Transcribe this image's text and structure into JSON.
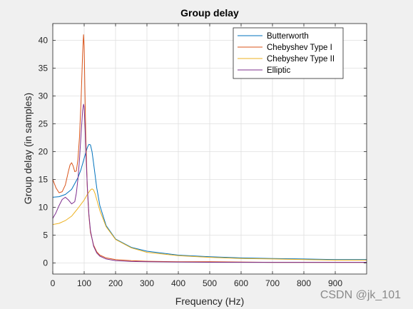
{
  "watermark": "CSDN @jk_101",
  "chart_data": {
    "type": "line",
    "title": "Group delay",
    "xlabel": "Frequency (Hz)",
    "ylabel": "Group delay (in samples)",
    "xlim": [
      0,
      1000
    ],
    "ylim": [
      -2,
      43
    ],
    "grid": true,
    "legend_position": "top-right",
    "xticks": [
      0,
      100,
      200,
      300,
      400,
      500,
      600,
      700,
      800,
      900
    ],
    "yticks": [
      0,
      5,
      10,
      15,
      20,
      25,
      30,
      35,
      40
    ],
    "series": [
      {
        "name": "Butterworth",
        "color": "#0072BD",
        "x": [
          0,
          20,
          40,
          60,
          80,
          90,
          100,
          110,
          115,
          120,
          125,
          130,
          140,
          150,
          170,
          200,
          250,
          300,
          400,
          500,
          600,
          700,
          800,
          900,
          1000
        ],
        "y": [
          11.8,
          11.9,
          12.3,
          13.2,
          15.3,
          16.8,
          18.8,
          20.7,
          21.3,
          21.2,
          20.0,
          17.9,
          13.5,
          10.3,
          6.7,
          4.3,
          2.8,
          2.1,
          1.4,
          1.1,
          0.9,
          0.8,
          0.7,
          0.6,
          0.6
        ]
      },
      {
        "name": "Chebyshev Type I",
        "color": "#D95319",
        "x": [
          0,
          10,
          20,
          30,
          40,
          50,
          55,
          60,
          65,
          70,
          75,
          80,
          85,
          90,
          95,
          98,
          100,
          102,
          105,
          110,
          115,
          120,
          130,
          140,
          150,
          170,
          200,
          250,
          300,
          400,
          500,
          700,
          1000
        ],
        "y": [
          15.0,
          13.5,
          12.6,
          12.8,
          14.0,
          16.5,
          17.6,
          18.0,
          17.4,
          16.4,
          16.5,
          18.5,
          22.5,
          29.0,
          37.5,
          41.0,
          39.0,
          32.0,
          23.0,
          13.5,
          8.5,
          5.5,
          3.2,
          2.0,
          1.4,
          0.9,
          0.6,
          0.4,
          0.3,
          0.2,
          0.2,
          0.1,
          0.1
        ]
      },
      {
        "name": "Chebyshev Type II",
        "color": "#EDB120",
        "x": [
          0,
          20,
          40,
          60,
          80,
          100,
          110,
          120,
          125,
          130,
          135,
          140,
          150,
          170,
          200,
          250,
          300,
          400,
          500,
          600,
          700,
          800,
          900,
          1000
        ],
        "y": [
          6.9,
          7.1,
          7.6,
          8.4,
          9.8,
          11.3,
          12.3,
          13.1,
          13.3,
          13.1,
          12.4,
          11.4,
          9.4,
          6.5,
          4.2,
          2.7,
          1.9,
          1.3,
          1.0,
          0.8,
          0.7,
          0.6,
          0.5,
          0.5
        ]
      },
      {
        "name": "Elliptic",
        "color": "#7E2F8E",
        "x": [
          0,
          10,
          20,
          30,
          40,
          50,
          60,
          70,
          75,
          80,
          85,
          90,
          95,
          98,
          100,
          103,
          106,
          110,
          115,
          120,
          130,
          140,
          150,
          170,
          200,
          250,
          300,
          400,
          500,
          700,
          1000
        ],
        "y": [
          8.0,
          9.0,
          10.3,
          11.4,
          11.8,
          11.3,
          10.6,
          11.0,
          12.5,
          15.0,
          18.5,
          23.0,
          27.3,
          28.5,
          28.0,
          24.0,
          19.0,
          13.8,
          8.8,
          5.8,
          3.0,
          1.8,
          1.2,
          0.7,
          0.4,
          0.25,
          0.2,
          0.15,
          0.12,
          0.1,
          0.1
        ]
      }
    ]
  }
}
